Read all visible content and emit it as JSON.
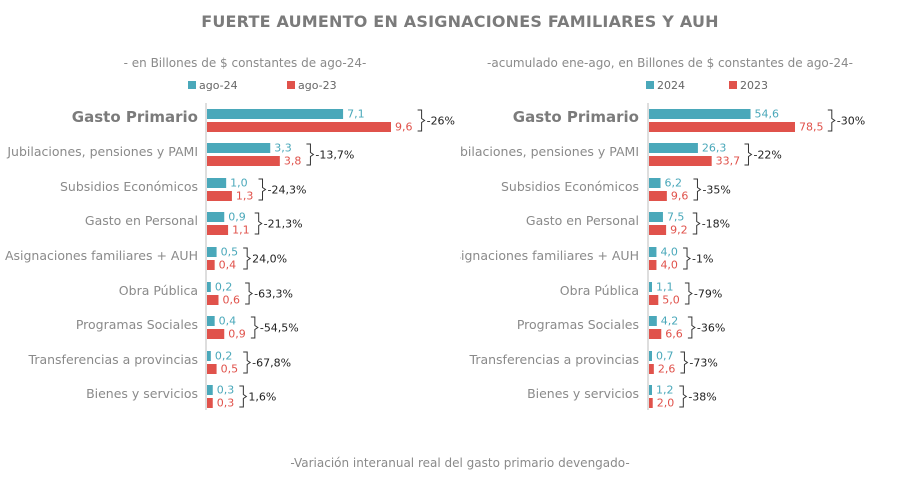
{
  "title": "FUERTE AUMENTO EN ASIGNACIONES FAMILIARES Y AUH",
  "footer": "-Variación interanual real del gasto primario devengado-",
  "colors": {
    "series1": "#4aa8ba",
    "series2": "#e0524b",
    "axis": "#bdbdbd",
    "bracket": "#333333"
  },
  "chart_data": [
    {
      "type": "bar",
      "orientation": "horizontal",
      "subtitle": "- en Billones de $ constantes de ago-24-",
      "categories": [
        "Gasto Primario",
        "Jubilaciones, pensiones y PAMI",
        "Subsidios Económicos",
        "Gasto en Personal",
        "Asignaciones familiares + AUH",
        "Obra Pública",
        "Programas Sociales",
        "Transferencias a provincias",
        "Bienes y servicios"
      ],
      "series": [
        {
          "name": "ago-24",
          "values": [
            7.1,
            3.3,
            1.0,
            0.9,
            0.5,
            0.2,
            0.4,
            0.2,
            0.3
          ],
          "labels": [
            "7,1",
            "3,3",
            "1,0",
            "0,9",
            "0,5",
            "0,2",
            "0,4",
            "0,2",
            "0,3"
          ]
        },
        {
          "name": "ago-23",
          "values": [
            9.6,
            3.8,
            1.3,
            1.1,
            0.4,
            0.6,
            0.9,
            0.5,
            0.3
          ],
          "labels": [
            "9,6",
            "3,8",
            "1,3",
            "1,1",
            "0,4",
            "0,6",
            "0,9",
            "0,5",
            "0,3"
          ]
        }
      ],
      "variation": [
        "-26%",
        "-13,7%",
        "-24,3%",
        "-21,3%",
        "24,0%",
        "-63,3%",
        "-54,5%",
        "-67,8%",
        "1,6%"
      ],
      "xlim": [
        0,
        9.6
      ]
    },
    {
      "type": "bar",
      "orientation": "horizontal",
      "subtitle": "-acumulado ene-ago, en Billones de $ constantes de ago-24-",
      "categories": [
        "Gasto Primario",
        "Jubilaciones, pensiones y PAMI",
        "Subsidios Económicos",
        "Gasto en Personal",
        "Asignaciones familiares + AUH",
        "Obra Pública",
        "Programas Sociales",
        "Transferencias a provincias",
        "Bienes y servicios"
      ],
      "series": [
        {
          "name": "2024",
          "values": [
            54.6,
            26.3,
            6.2,
            7.5,
            4.0,
            1.1,
            4.2,
            0.7,
            1.2
          ],
          "labels": [
            "54,6",
            "26,3",
            "6,2",
            "7,5",
            "4,0",
            "1,1",
            "4,2",
            "0,7",
            "1,2"
          ]
        },
        {
          "name": "2023",
          "values": [
            78.5,
            33.7,
            9.6,
            9.2,
            4.0,
            5.0,
            6.6,
            2.6,
            2.0
          ],
          "labels": [
            "78,5",
            "33,7",
            "9,6",
            "9,2",
            "4,0",
            "5,0",
            "6,6",
            "2,6",
            "2,0"
          ]
        }
      ],
      "variation": [
        "-30%",
        "-22%",
        "-35%",
        "-18%",
        "-1%",
        "-79%",
        "-36%",
        "-73%",
        "-38%"
      ],
      "xlim": [
        0,
        78.5
      ]
    }
  ]
}
